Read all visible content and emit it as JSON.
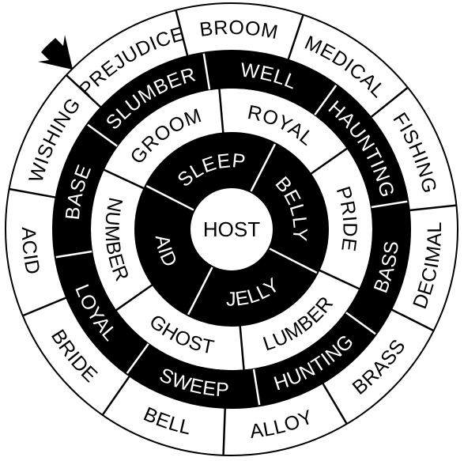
{
  "puzzle": {
    "center": "HOST",
    "rings": [
      {
        "fill": "#000000",
        "text_color": "#ffffff",
        "words": [
          "SLEEP",
          "BELLY",
          "JELLY",
          "AID"
        ]
      },
      {
        "fill": "#ffffff",
        "text_color": "#000000",
        "words": [
          "GROOM",
          "ROYAL",
          "PRIDE",
          "LUMBER",
          "GHOST",
          "NUMBER"
        ]
      },
      {
        "fill": "#000000",
        "text_color": "#ffffff",
        "words": [
          "SLUMBER",
          "WELL",
          "HAUNTING",
          "BASS",
          "HUNTING",
          "SWEEP",
          "LOYAL",
          "BASE"
        ]
      },
      {
        "fill": "#ffffff",
        "text_color": "#000000",
        "words": [
          "PREJUDICE",
          "BROOM",
          "MEDICAL",
          "FISHING",
          "DECIMAL",
          "BRASS",
          "ALLOY",
          "BELL",
          "BRIDE",
          "ACID",
          "WISHING"
        ]
      }
    ],
    "start_marker": "arrow-icon",
    "colors": {
      "ink": "#000000",
      "paper": "#ffffff"
    }
  }
}
